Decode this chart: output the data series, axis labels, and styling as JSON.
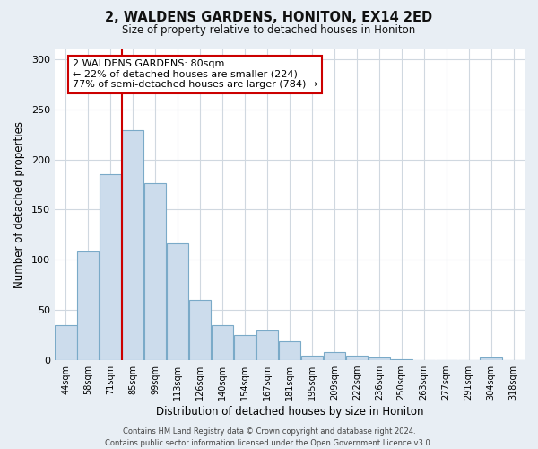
{
  "title": "2, WALDENS GARDENS, HONITON, EX14 2ED",
  "subtitle": "Size of property relative to detached houses in Honiton",
  "xlabel": "Distribution of detached houses by size in Honiton",
  "ylabel": "Number of detached properties",
  "bin_labels": [
    "44sqm",
    "58sqm",
    "71sqm",
    "85sqm",
    "99sqm",
    "113sqm",
    "126sqm",
    "140sqm",
    "154sqm",
    "167sqm",
    "181sqm",
    "195sqm",
    "209sqm",
    "222sqm",
    "236sqm",
    "250sqm",
    "263sqm",
    "277sqm",
    "291sqm",
    "304sqm",
    "318sqm"
  ],
  "bar_heights": [
    35,
    108,
    185,
    229,
    176,
    116,
    60,
    35,
    25,
    29,
    19,
    4,
    8,
    4,
    2,
    1,
    0,
    0,
    0,
    2,
    0
  ],
  "bar_color": "#ccdcec",
  "bar_edge_color": "#7aaac8",
  "vline_x_index": 3,
  "vline_color": "#cc0000",
  "annotation_text": "2 WALDENS GARDENS: 80sqm\n← 22% of detached houses are smaller (224)\n77% of semi-detached houses are larger (784) →",
  "annotation_box_color": "#ffffff",
  "annotation_box_edge_color": "#cc0000",
  "ylim": [
    0,
    310
  ],
  "yticks": [
    0,
    50,
    100,
    150,
    200,
    250,
    300
  ],
  "footer": "Contains HM Land Registry data © Crown copyright and database right 2024.\nContains public sector information licensed under the Open Government Licence v3.0.",
  "fig_background_color": "#e8eef4",
  "plot_background_color": "#ffffff",
  "grid_color": "#d0d8e0"
}
